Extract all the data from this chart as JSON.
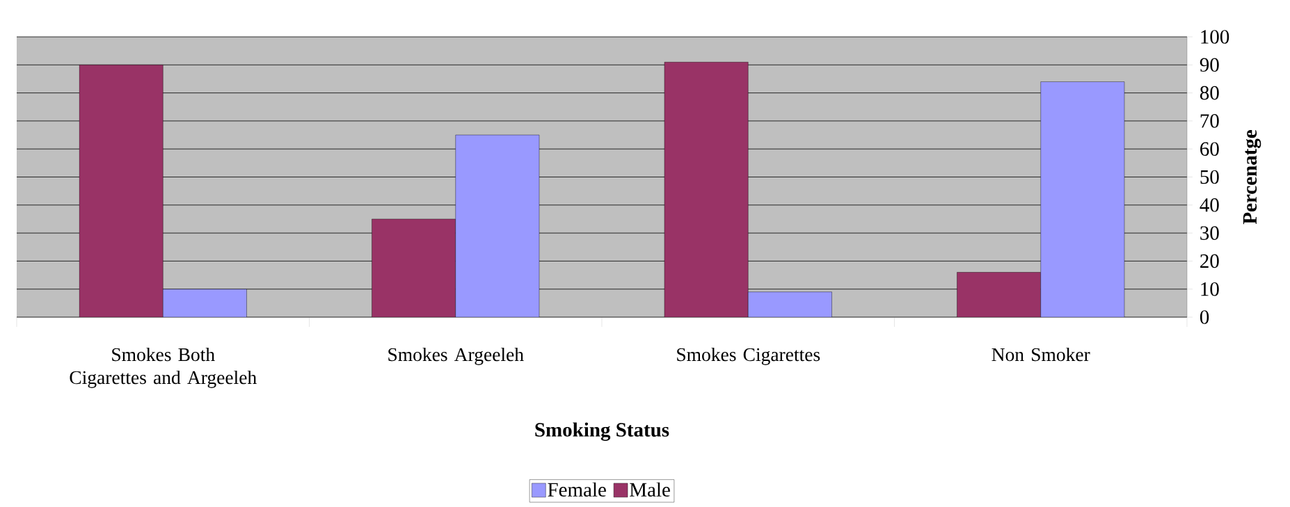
{
  "chart_data": {
    "type": "bar",
    "xlabel": "Smoking Status",
    "ylabel": "Percenatge",
    "categories": [
      "Smokes Both Cigarettes and Argeeleh",
      "Smokes Argeeleh",
      "Smokes Cigarettes",
      "Non Smoker"
    ],
    "series": [
      {
        "name": "Male",
        "color": "#993366",
        "values": [
          90,
          35,
          91,
          16
        ]
      },
      {
        "name": "Female",
        "color": "#9999ff",
        "values": [
          10,
          65,
          9,
          84
        ]
      }
    ],
    "ylim": [
      0,
      100
    ],
    "yticks": [
      0,
      10,
      20,
      30,
      40,
      50,
      60,
      70,
      80,
      90,
      100
    ],
    "grid": "y",
    "legend": "bottom"
  }
}
